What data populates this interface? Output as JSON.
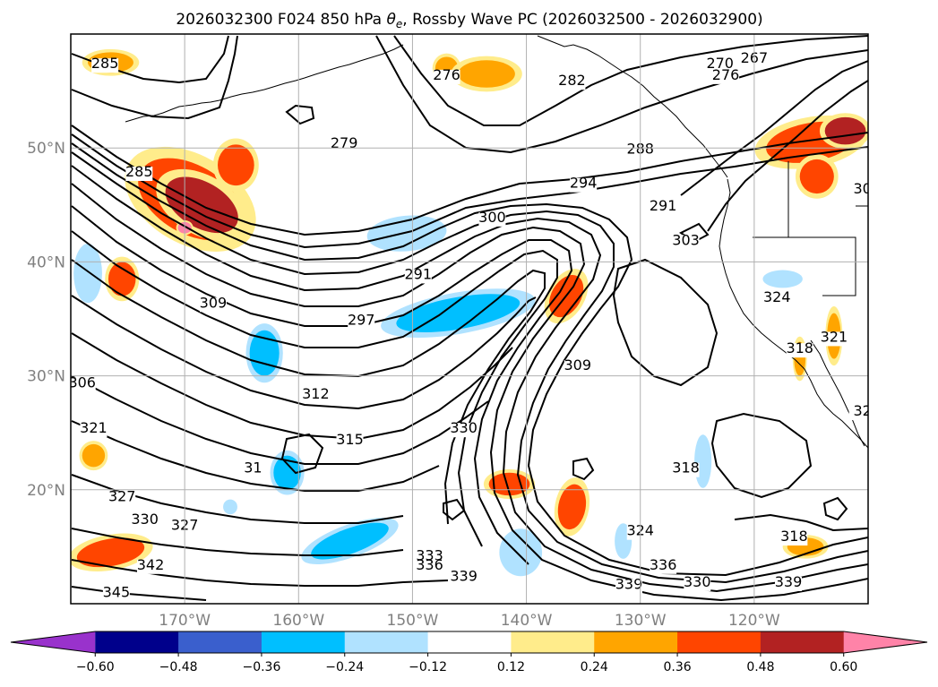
{
  "chart_data": {
    "type": "contour-map",
    "title_prefix": "2026032300 F024 850 hPa ",
    "title_var_main": "θ",
    "title_var_sub": "e",
    "title_suffix": ", Rossby Wave PC (2026032500 - 2026032900)",
    "longitude_ticks": [
      {
        "value": -170,
        "label": "170°W"
      },
      {
        "value": -160,
        "label": "160°W"
      },
      {
        "value": -150,
        "label": "150°W"
      },
      {
        "value": -140,
        "label": "140°W"
      },
      {
        "value": -130,
        "label": "130°W"
      },
      {
        "value": -120,
        "label": "120°W"
      }
    ],
    "latitude_ticks": [
      {
        "value": 50,
        "label": "50°N"
      },
      {
        "value": 40,
        "label": "40°N"
      },
      {
        "value": 30,
        "label": "30°N"
      },
      {
        "value": 20,
        "label": "20°N"
      }
    ],
    "lon_range": [
      -180,
      -110
    ],
    "lat_range": [
      10,
      60
    ],
    "grid": true,
    "colorbar": {
      "orientation": "horizontal",
      "extend": "both",
      "levels": [
        -0.72,
        -0.6,
        -0.48,
        -0.36,
        -0.24,
        -0.12,
        0.12,
        0.24,
        0.36,
        0.48,
        0.6,
        0.72
      ],
      "colors": [
        "#9932cc",
        "#00008b",
        "#3a5fcd",
        "#00bfff",
        "#b0e2ff",
        "#ffffff",
        "#ffec8b",
        "#ffa500",
        "#ff4500",
        "#b22222",
        "#ff83a8"
      ],
      "tick_labels": [
        "−0.60",
        "−0.48",
        "−0.36",
        "−0.24",
        "−0.12",
        "0.12",
        "0.24",
        "0.36",
        "0.48",
        "0.60"
      ]
    },
    "contour_labels": [
      {
        "lon": -177.0,
        "lat": 57.0,
        "text": "285"
      },
      {
        "lon": -174.0,
        "lat": 47.5,
        "text": "285"
      },
      {
        "lon": -156.0,
        "lat": 50.0,
        "text": "279"
      },
      {
        "lon": -147.0,
        "lat": 56.0,
        "text": "276"
      },
      {
        "lon": -136.0,
        "lat": 55.5,
        "text": "282"
      },
      {
        "lon": -123.0,
        "lat": 57.0,
        "text": "270"
      },
      {
        "lon": -120.0,
        "lat": 57.5,
        "text": "267"
      },
      {
        "lon": -122.5,
        "lat": 56.0,
        "text": "276"
      },
      {
        "lon": -130.0,
        "lat": 49.5,
        "text": "288"
      },
      {
        "lon": -135.0,
        "lat": 46.5,
        "text": "294"
      },
      {
        "lon": -128.0,
        "lat": 44.5,
        "text": "291"
      },
      {
        "lon": -126.0,
        "lat": 41.5,
        "text": "303"
      },
      {
        "lon": -110.5,
        "lat": 46.0,
        "text": "30"
      },
      {
        "lon": -149.5,
        "lat": 38.5,
        "text": "291"
      },
      {
        "lon": -143.0,
        "lat": 43.5,
        "text": "300"
      },
      {
        "lon": -167.5,
        "lat": 36.0,
        "text": "309"
      },
      {
        "lon": -154.5,
        "lat": 34.5,
        "text": "297"
      },
      {
        "lon": -118.0,
        "lat": 36.5,
        "text": "324"
      },
      {
        "lon": -116.0,
        "lat": 32.0,
        "text": "318"
      },
      {
        "lon": -113.0,
        "lat": 33.0,
        "text": "321"
      },
      {
        "lon": -135.5,
        "lat": 30.5,
        "text": "309"
      },
      {
        "lon": -179.0,
        "lat": 29.0,
        "text": "306"
      },
      {
        "lon": -158.5,
        "lat": 28.0,
        "text": "312"
      },
      {
        "lon": -178.0,
        "lat": 25.0,
        "text": "321"
      },
      {
        "lon": -155.5,
        "lat": 24.0,
        "text": "315"
      },
      {
        "lon": -145.5,
        "lat": 25.0,
        "text": "330"
      },
      {
        "lon": -164.0,
        "lat": 21.5,
        "text": "31"
      },
      {
        "lon": -110.5,
        "lat": 26.5,
        "text": "32"
      },
      {
        "lon": -126.0,
        "lat": 21.5,
        "text": "318"
      },
      {
        "lon": -175.5,
        "lat": 19.0,
        "text": "327"
      },
      {
        "lon": -173.5,
        "lat": 17.0,
        "text": "330"
      },
      {
        "lon": -170.0,
        "lat": 16.5,
        "text": "327"
      },
      {
        "lon": -130.0,
        "lat": 16.0,
        "text": "324"
      },
      {
        "lon": -173.0,
        "lat": 13.0,
        "text": "342"
      },
      {
        "lon": -148.5,
        "lat": 13.8,
        "text": "333"
      },
      {
        "lon": -148.5,
        "lat": 13.0,
        "text": "336"
      },
      {
        "lon": -128.0,
        "lat": 13.0,
        "text": "336"
      },
      {
        "lon": -145.5,
        "lat": 12.0,
        "text": "339"
      },
      {
        "lon": -131.0,
        "lat": 11.3,
        "text": "339"
      },
      {
        "lon": -125.0,
        "lat": 11.5,
        "text": "330"
      },
      {
        "lon": -117.0,
        "lat": 11.5,
        "text": "339"
      },
      {
        "lon": -116.5,
        "lat": 15.5,
        "text": "318"
      },
      {
        "lon": -176.0,
        "lat": 10.6,
        "text": "345"
      }
    ],
    "filled_regions": [
      {
        "level": 0.36,
        "lon": -169.5,
        "lat": 45.5,
        "rlon": 5.0,
        "rlat": 3.0,
        "rot": 30
      },
      {
        "level": 0.48,
        "lon": -168.5,
        "lat": 45.0,
        "rlon": 3.5,
        "rlat": 2.0,
        "rot": 30
      },
      {
        "level": 0.6,
        "lon": -170.0,
        "lat": 43.0,
        "rlon": 0.6,
        "rlat": 0.5,
        "rot": 0
      },
      {
        "level": 0.36,
        "lon": -165.5,
        "lat": 48.5,
        "rlon": 1.6,
        "rlat": 1.8,
        "rot": 0
      },
      {
        "level": 0.36,
        "lon": -175.5,
        "lat": 38.5,
        "rlon": 1.2,
        "rlat": 1.5,
        "rot": 0
      },
      {
        "level": 0.24,
        "lon": -176.5,
        "lat": 57.5,
        "rlon": 2.0,
        "rlat": 0.9,
        "rot": 0
      },
      {
        "level": 0.24,
        "lon": -147.0,
        "lat": 57.0,
        "rlon": 1.0,
        "rlat": 1.0,
        "rot": 0
      },
      {
        "level": 0.24,
        "lon": -143.5,
        "lat": 56.5,
        "rlon": 2.5,
        "rlat": 1.2,
        "rot": 0
      },
      {
        "level": 0.36,
        "lon": -115.0,
        "lat": 50.5,
        "rlon": 4.0,
        "rlat": 1.7,
        "rot": -10
      },
      {
        "level": 0.48,
        "lon": -112.0,
        "lat": 51.5,
        "rlon": 1.8,
        "rlat": 1.2,
        "rot": 0
      },
      {
        "level": 0.36,
        "lon": -114.5,
        "lat": 47.5,
        "rlon": 1.5,
        "rlat": 1.5,
        "rot": 0
      },
      {
        "level": 0.36,
        "lon": -136.5,
        "lat": 37.0,
        "rlon": 1.3,
        "rlat": 2.0,
        "rot": 30
      },
      {
        "level": 0.36,
        "lon": -141.5,
        "lat": 20.5,
        "rlon": 1.8,
        "rlat": 1.0,
        "rot": 0
      },
      {
        "level": 0.36,
        "lon": -136.0,
        "lat": 18.5,
        "rlon": 1.2,
        "rlat": 2.0,
        "rot": 10
      },
      {
        "level": 0.36,
        "lon": -176.5,
        "lat": 14.5,
        "rlon": 3.0,
        "rlat": 1.2,
        "rot": -10
      },
      {
        "level": 0.24,
        "lon": -115.5,
        "lat": 15.0,
        "rlon": 1.6,
        "rlat": 0.8,
        "rot": 0
      },
      {
        "level": 0.24,
        "lon": -113.0,
        "lat": 33.5,
        "rlon": 0.6,
        "rlat": 2.0,
        "rot": 0
      },
      {
        "level": 0.24,
        "lon": -116.0,
        "lat": 31.5,
        "rlon": 0.5,
        "rlat": 1.5,
        "rot": 0
      },
      {
        "level": 0.24,
        "lon": -178.0,
        "lat": 23.0,
        "rlon": 1.0,
        "rlat": 1.0,
        "rot": 0
      },
      {
        "level": -0.24,
        "lon": -150.5,
        "lat": 42.5,
        "rlon": 2.8,
        "rlat": 1.2,
        "rot": -5
      },
      {
        "level": -0.36,
        "lon": -146.0,
        "lat": 35.5,
        "rlon": 5.5,
        "rlat": 1.4,
        "rot": -10
      },
      {
        "level": -0.36,
        "lon": -163.0,
        "lat": 32.0,
        "rlon": 1.3,
        "rlat": 2.0,
        "rot": 0
      },
      {
        "level": -0.24,
        "lon": -178.5,
        "lat": 39.0,
        "rlon": 1.0,
        "rlat": 2.0,
        "rot": 0
      },
      {
        "level": -0.36,
        "lon": -161.0,
        "lat": 21.5,
        "rlon": 1.2,
        "rlat": 1.5,
        "rot": 0
      },
      {
        "level": -0.36,
        "lon": -155.5,
        "lat": 15.5,
        "rlon": 3.6,
        "rlat": 1.1,
        "rot": -20
      },
      {
        "level": -0.24,
        "lon": -140.5,
        "lat": 14.5,
        "rlon": 1.5,
        "rlat": 1.6,
        "rot": 0
      },
      {
        "level": -0.24,
        "lon": -117.5,
        "lat": 38.5,
        "rlon": 1.4,
        "rlat": 0.6,
        "rot": 0
      },
      {
        "level": -0.24,
        "lon": -124.5,
        "lat": 22.5,
        "rlon": 0.6,
        "rlat": 1.8,
        "rot": 0
      },
      {
        "level": -0.24,
        "lon": -131.5,
        "lat": 15.5,
        "rlon": 0.6,
        "rlat": 1.2,
        "rot": 0
      },
      {
        "level": -0.24,
        "lon": -166.0,
        "lat": 18.5,
        "rlon": 0.5,
        "rlat": 0.5,
        "rot": 0
      }
    ]
  }
}
